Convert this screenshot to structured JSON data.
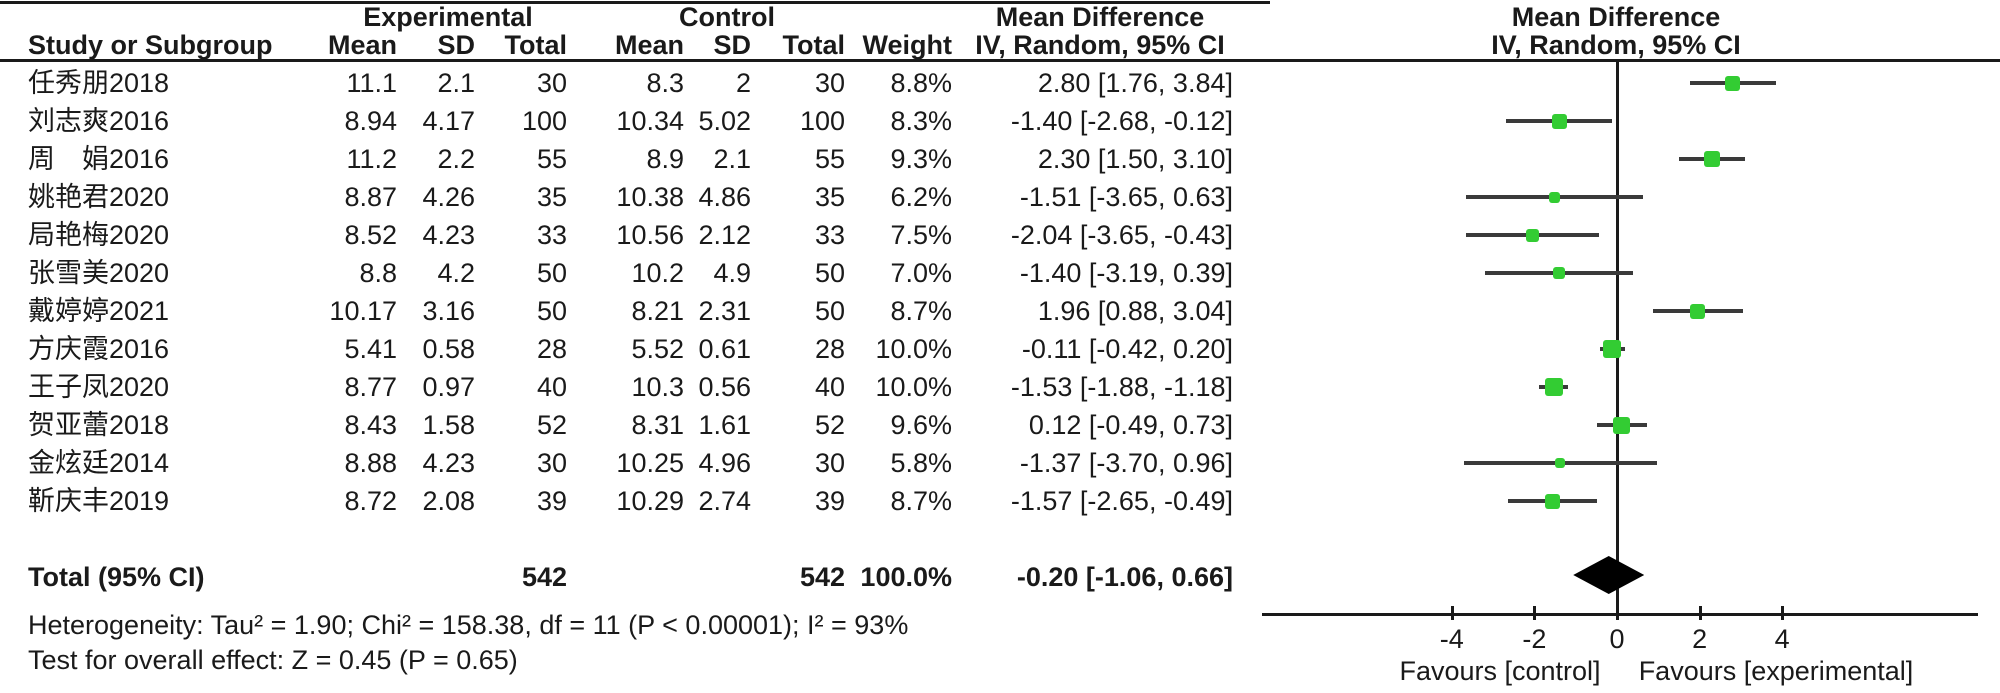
{
  "table_header": {
    "group_experimental": "Experimental",
    "group_control": "Control",
    "col_study": "Study or Subgroup",
    "col_mean": "Mean",
    "col_sd": "SD",
    "col_total": "Total",
    "col_weight": "Weight",
    "effect_title": "Mean Difference",
    "effect_subtitle": "IV, Random, 95% CI",
    "plot_title": "Mean Difference",
    "plot_subtitle": "IV, Random, 95% CI"
  },
  "chart_data": {
    "type": "forest",
    "effect_measure": "Mean Difference",
    "method": "IV, Random, 95% CI",
    "x_ticks": [
      -4,
      -2,
      0,
      2,
      4
    ],
    "x_range_visible": [
      -8.6,
      8.7
    ],
    "favours_left": "Favours [control]",
    "favours_right": "Favours [experimental]",
    "marker_color": "#33cc33",
    "ci_line_color": "#3a3a3a",
    "diamond_color": "#000000",
    "studies": [
      {
        "name": "任秀朋2018",
        "mean1": "11.1",
        "sd1": "2.1",
        "total1": "30",
        "mean2": "8.3",
        "sd2": "2",
        "total2": "30",
        "weight": "8.8%",
        "weight_value": 8.8,
        "md": 2.8,
        "ci_low": 1.76,
        "ci_high": 3.84,
        "ci_text": "2.80 [1.76, 3.84]"
      },
      {
        "name": "刘志爽2016",
        "mean1": "8.94",
        "sd1": "4.17",
        "total1": "100",
        "mean2": "10.34",
        "sd2": "5.02",
        "total2": "100",
        "weight": "8.3%",
        "weight_value": 8.3,
        "md": -1.4,
        "ci_low": -2.68,
        "ci_high": -0.12,
        "ci_text": "-1.40 [-2.68, -0.12]"
      },
      {
        "name": "周　娟2016",
        "mean1": "11.2",
        "sd1": "2.2",
        "total1": "55",
        "mean2": "8.9",
        "sd2": "2.1",
        "total2": "55",
        "weight": "9.3%",
        "weight_value": 9.3,
        "md": 2.3,
        "ci_low": 1.5,
        "ci_high": 3.1,
        "ci_text": "2.30 [1.50, 3.10]"
      },
      {
        "name": "姚艳君2020",
        "mean1": "8.87",
        "sd1": "4.26",
        "total1": "35",
        "mean2": "10.38",
        "sd2": "4.86",
        "total2": "35",
        "weight": "6.2%",
        "weight_value": 6.2,
        "md": -1.51,
        "ci_low": -3.65,
        "ci_high": 0.63,
        "ci_text": "-1.51 [-3.65, 0.63]"
      },
      {
        "name": "局艳梅2020",
        "mean1": "8.52",
        "sd1": "4.23",
        "total1": "33",
        "mean2": "10.56",
        "sd2": "2.12",
        "total2": "33",
        "weight": "7.5%",
        "weight_value": 7.5,
        "md": -2.04,
        "ci_low": -3.65,
        "ci_high": -0.43,
        "ci_text": "-2.04 [-3.65, -0.43]"
      },
      {
        "name": "张雪美2020",
        "mean1": "8.8",
        "sd1": "4.2",
        "total1": "50",
        "mean2": "10.2",
        "sd2": "4.9",
        "total2": "50",
        "weight": "7.0%",
        "weight_value": 7.0,
        "md": -1.4,
        "ci_low": -3.19,
        "ci_high": 0.39,
        "ci_text": "-1.40 [-3.19, 0.39]"
      },
      {
        "name": "戴婷婷2021",
        "mean1": "10.17",
        "sd1": "3.16",
        "total1": "50",
        "mean2": "8.21",
        "sd2": "2.31",
        "total2": "50",
        "weight": "8.7%",
        "weight_value": 8.7,
        "md": 1.96,
        "ci_low": 0.88,
        "ci_high": 3.04,
        "ci_text": "1.96 [0.88, 3.04]"
      },
      {
        "name": "方庆霞2016",
        "mean1": "5.41",
        "sd1": "0.58",
        "total1": "28",
        "mean2": "5.52",
        "sd2": "0.61",
        "total2": "28",
        "weight": "10.0%",
        "weight_value": 10.0,
        "md": -0.11,
        "ci_low": -0.42,
        "ci_high": 0.2,
        "ci_text": "-0.11 [-0.42, 0.20]"
      },
      {
        "name": "王子凤2020",
        "mean1": "8.77",
        "sd1": "0.97",
        "total1": "40",
        "mean2": "10.3",
        "sd2": "0.56",
        "total2": "40",
        "weight": "10.0%",
        "weight_value": 10.0,
        "md": -1.53,
        "ci_low": -1.88,
        "ci_high": -1.18,
        "ci_text": "-1.53 [-1.88, -1.18]"
      },
      {
        "name": "贺亚蕾2018",
        "mean1": "8.43",
        "sd1": "1.58",
        "total1": "52",
        "mean2": "8.31",
        "sd2": "1.61",
        "total2": "52",
        "weight": "9.6%",
        "weight_value": 9.6,
        "md": 0.12,
        "ci_low": -0.49,
        "ci_high": 0.73,
        "ci_text": "0.12 [-0.49, 0.73]"
      },
      {
        "name": "金炫廷2014",
        "mean1": "8.88",
        "sd1": "4.23",
        "total1": "30",
        "mean2": "10.25",
        "sd2": "4.96",
        "total2": "30",
        "weight": "5.8%",
        "weight_value": 5.8,
        "md": -1.37,
        "ci_low": -3.7,
        "ci_high": 0.96,
        "ci_text": "-1.37 [-3.70, 0.96]"
      },
      {
        "name": "靳庆丰2019",
        "mean1": "8.72",
        "sd1": "2.08",
        "total1": "39",
        "mean2": "10.29",
        "sd2": "2.74",
        "total2": "39",
        "weight": "8.7%",
        "weight_value": 8.7,
        "md": -1.57,
        "ci_low": -2.65,
        "ci_high": -0.49,
        "ci_text": "-1.57 [-2.65, -0.49]"
      }
    ],
    "total": {
      "label": "Total (95% CI)",
      "total1": "542",
      "total2": "542",
      "weight": "100.0%",
      "md": -0.2,
      "ci_low": -1.06,
      "ci_high": 0.66,
      "ci_text": "-0.20 [-1.06, 0.66]"
    }
  },
  "footer": {
    "heterogeneity": "Heterogeneity: Tau² = 1.90; Chi² = 158.38, df = 11 (P < 0.00001); I² = 93%",
    "overall_effect": "Test for overall effect: Z = 0.45 (P = 0.65)"
  }
}
